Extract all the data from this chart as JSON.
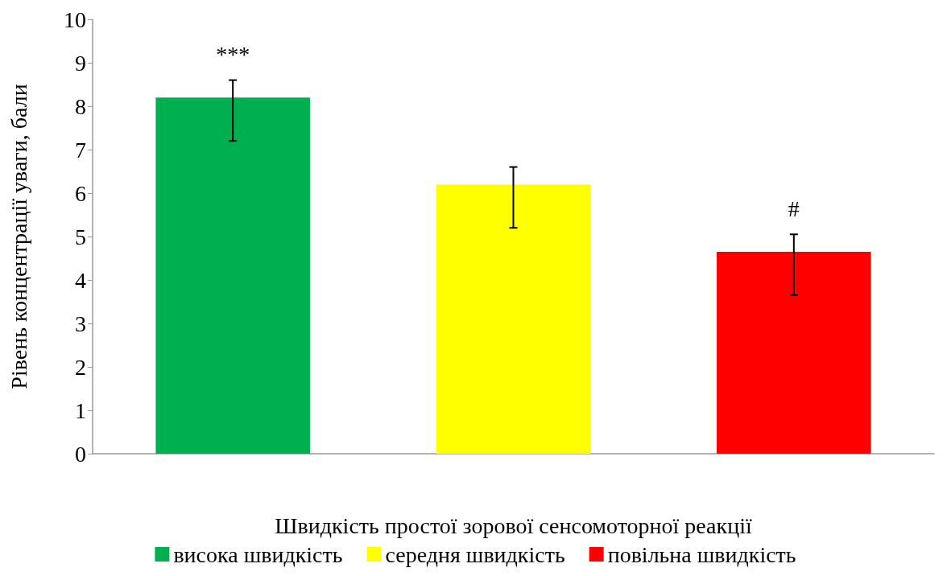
{
  "chart_data": {
    "type": "bar",
    "xlabel": "Швидкість простої зорової сенсомоторної реакції",
    "ylabel": "Рівень концентрації уваги, бали",
    "categories": [
      null,
      null,
      null
    ],
    "series": [
      {
        "name": "висока швидкість",
        "color": "#00b050",
        "values": [
          8.2,
          null,
          null
        ],
        "errors": [
          [
            7.2,
            8.6
          ],
          null,
          null
        ]
      },
      {
        "name": "середня швидкість",
        "color": "#ffff00",
        "values": [
          null,
          6.2,
          null
        ],
        "errors": [
          null,
          [
            5.2,
            6.6
          ],
          null
        ]
      },
      {
        "name": "повільна швидкість",
        "color": "#ff0000",
        "values": [
          null,
          null,
          4.65
        ],
        "errors": [
          null,
          null,
          [
            3.65,
            5.05
          ]
        ]
      }
    ],
    "annotations": [
      "***",
      "#"
    ],
    "ylim": [
      0,
      10
    ],
    "yticks": [
      0,
      1,
      2,
      3,
      4,
      5,
      6,
      7,
      8,
      9,
      10
    ],
    "grid": false,
    "legend": "bottom"
  }
}
